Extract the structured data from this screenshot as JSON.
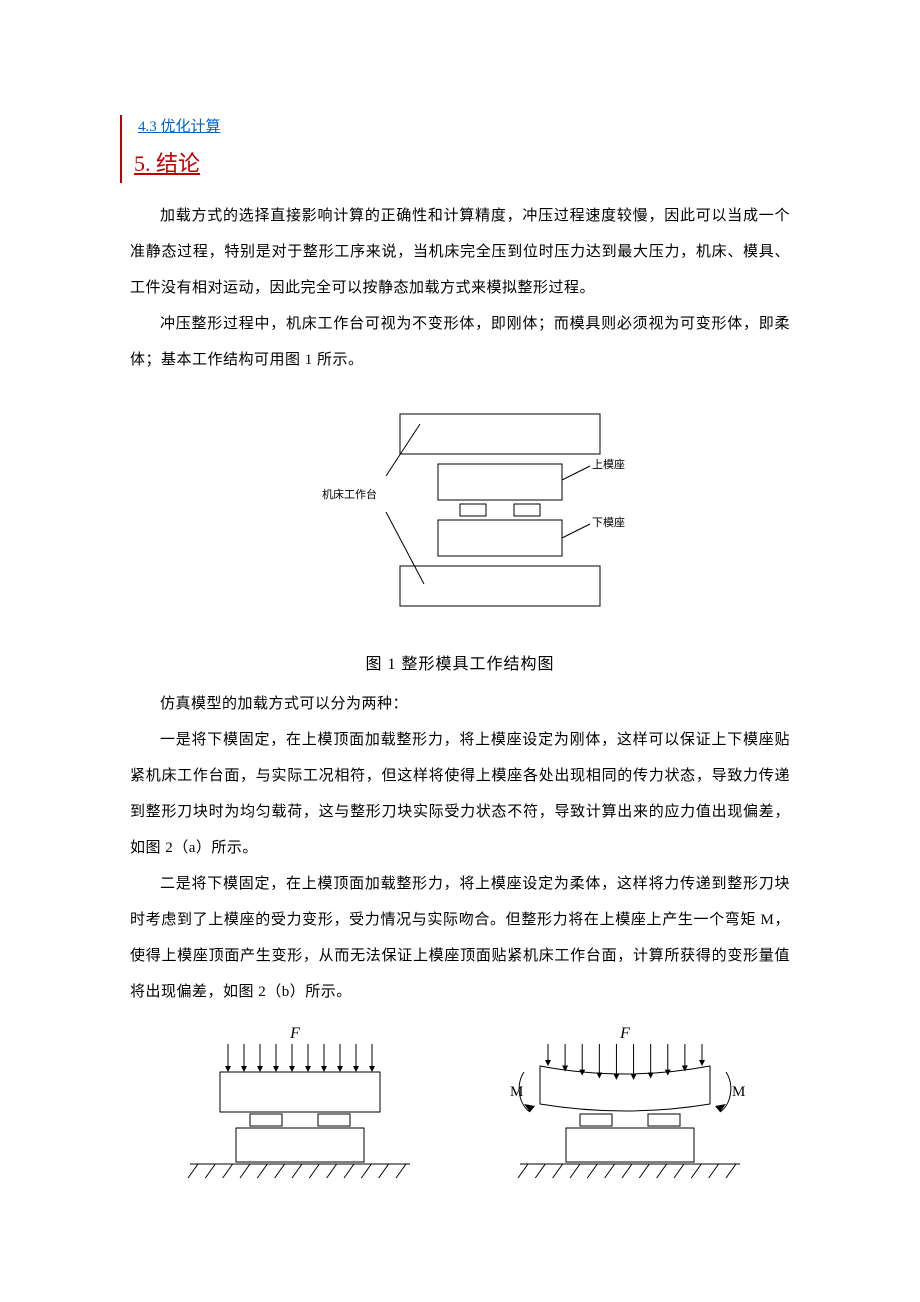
{
  "revision_bar_color": "#c00000",
  "toc": {
    "item1": {
      "label": "4.3  优化计算",
      "color": "#0563c1",
      "fontsize": 15
    },
    "item2": {
      "label": "5.  结论",
      "color": "#c00000",
      "fontsize": 22
    }
  },
  "paragraphs": {
    "p1": "加载方式的选择直接影响计算的正确性和计算精度，冲压过程速度较慢，因此可以当成一个准静态过程，特别是对于整形工序来说，当机床完全压到位时压力达到最大压力，机床、模具、工件没有相对运动，因此完全可以按静态加载方式来模拟整形过程。",
    "p2": "冲压整形过程中，机床工作台可视为不变形体，即刚体；而模具则必须视为可变形体，即柔体；基本工作结构可用图 1 所示。",
    "p3": "仿真模型的加载方式可以分为两种：",
    "p4": "一是将下模固定，在上模顶面加载整形力，将上模座设定为刚体，这样可以保证上下模座贴紧机床工作台面，与实际工况相符，但这样将使得上模座各处出现相同的传力状态，导致力传递到整形刀块时为均匀载荷，这与整形刀块实际受力状态不符，导致计算出来的应力值出现偏差，如图 2（a）所示。",
    "p5": "二是将下模固定，在上模顶面加载整形力，将上模座设定为柔体，这样将力传递到整形刀块时考虑到了上模座的受力变形，受力情况与实际吻合。但整形力将在上模座上产生一个弯矩 M，使得上模座顶面产生变形，从而无法保证上模座顶面贴紧机床工作台面，计算所获得的变形量值将出现偏差，如图 2（b）所示。"
  },
  "fig1": {
    "caption": "图 1  整形模具工作结构图",
    "labels": {
      "worktable": "机床工作台",
      "upper_die": "上模座",
      "lower_die": "下模座"
    },
    "style": {
      "stroke": "#000000",
      "stroke_width": 1,
      "label_fontsize": 11,
      "label_font": "SimSun"
    }
  },
  "fig2": {
    "force_label": "F",
    "moment_label": "M",
    "style": {
      "stroke": "#000000",
      "stroke_width": 1,
      "label_fontsize": 16,
      "force_font_style": "italic",
      "arrow_count": 10,
      "hatch_count": 12
    }
  }
}
